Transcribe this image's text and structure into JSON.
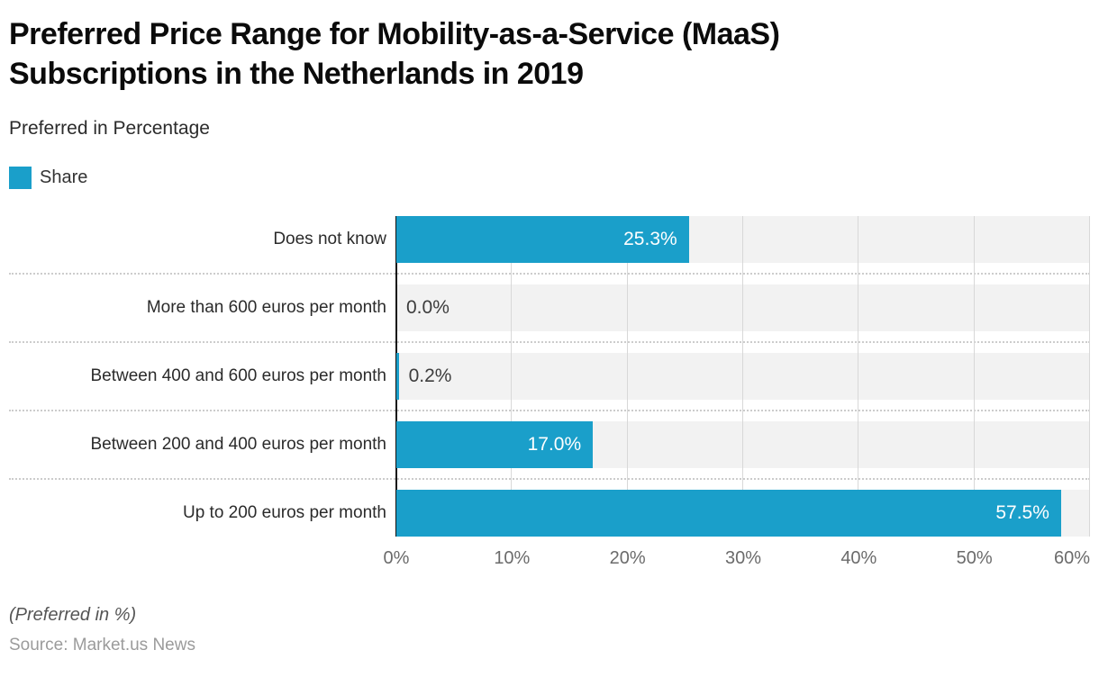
{
  "header": {
    "title": "Preferred Price Range for Mobility-as-a-Service (MaaS)\nSubscriptions in the Netherlands in 2019",
    "subtitle": "Preferred in Percentage"
  },
  "legend": {
    "position": "top-left",
    "items": [
      {
        "label": "Share",
        "color": "#1A9FCA"
      }
    ]
  },
  "chart_data": {
    "type": "bar",
    "orientation": "horizontal",
    "title": "Preferred Price Range for Mobility-as-a-Service (MaaS) Subscriptions in the Netherlands in 2019",
    "subtitle": "Preferred in Percentage",
    "series_name": "Share",
    "categories": [
      "Does not know",
      "More than 600 euros per month",
      "Between 400 and 600 euros per month",
      "Between 200 and 400 euros per month",
      "Up to 200 euros per month"
    ],
    "values": [
      25.3,
      0.0,
      0.2,
      17.0,
      57.5
    ],
    "value_labels": [
      "25.3%",
      "0.0%",
      "0.2%",
      "17.0%",
      "57.5%"
    ],
    "xlim": [
      0,
      60
    ],
    "x_tick_labels": [
      "0%",
      "10%",
      "20%",
      "30%",
      "40%",
      "50%",
      "60%"
    ],
    "grid": true,
    "legend_position": "top-left"
  },
  "colors": {
    "bar": "#1A9FCA",
    "track": "#F2F2F2",
    "gridline": "#D8D8D8",
    "axis_line": "#111111",
    "separator": "#CCCCCC"
  },
  "footer": {
    "note": "(Preferred in %)",
    "source": "Source: Market.us News"
  }
}
